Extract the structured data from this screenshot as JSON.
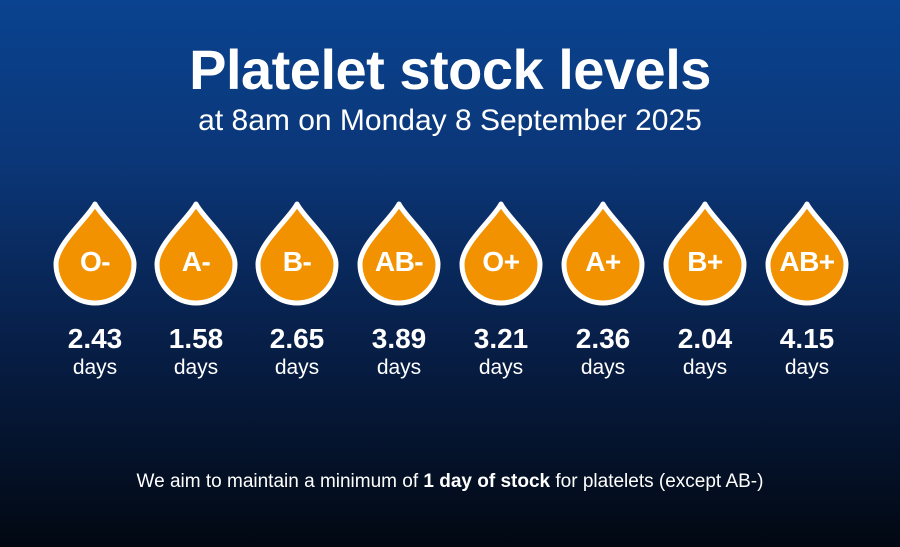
{
  "header": {
    "title": "Platelet stock levels",
    "subtitle": "at 8am on Monday 8 September 2025"
  },
  "colors": {
    "drop_fill": "#f39200",
    "drop_outline": "#ffffff",
    "background_top": "#0a4390",
    "background_bottom": "#020812"
  },
  "stock": [
    {
      "group": "O-",
      "value": "2.43",
      "unit": "days"
    },
    {
      "group": "A-",
      "value": "1.58",
      "unit": "days"
    },
    {
      "group": "B-",
      "value": "2.65",
      "unit": "days"
    },
    {
      "group": "AB-",
      "value": "3.89",
      "unit": "days"
    },
    {
      "group": "O+",
      "value": "3.21",
      "unit": "days"
    },
    {
      "group": "A+",
      "value": "2.36",
      "unit": "days"
    },
    {
      "group": "B+",
      "value": "2.04",
      "unit": "days"
    },
    {
      "group": "AB+",
      "value": "4.15",
      "unit": "days"
    }
  ],
  "footer": {
    "before": "We aim to maintain a minimum of ",
    "emphasis": "1 day of stock",
    "after": " for platelets (except AB-)"
  }
}
